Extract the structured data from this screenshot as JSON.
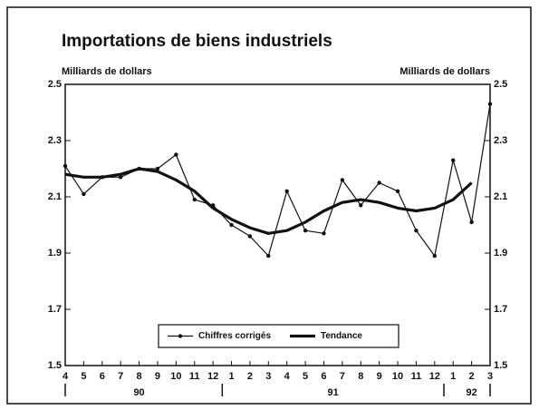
{
  "chart_data": {
    "type": "line",
    "title": "Importations de biens industriels",
    "ylabel": "Milliards de dollars",
    "y2label": "Milliards de dollars",
    "categories": [
      "4",
      "5",
      "6",
      "7",
      "8",
      "9",
      "10",
      "11",
      "12",
      "1",
      "2",
      "3",
      "4",
      "5",
      "6",
      "7",
      "8",
      "9",
      "10",
      "11",
      "12",
      "1",
      "2",
      "3"
    ],
    "year_labels": [
      "90",
      "91",
      "92"
    ],
    "series": [
      {
        "name": "Chiffres corrigés",
        "color": "#111111",
        "markers": true,
        "values": [
          2.21,
          2.11,
          2.17,
          2.17,
          2.2,
          2.2,
          2.25,
          2.09,
          2.07,
          2.0,
          1.96,
          1.89,
          2.12,
          1.98,
          1.97,
          2.16,
          2.07,
          2.15,
          2.12,
          1.98,
          1.89,
          2.23,
          2.01,
          2.43
        ]
      },
      {
        "name": "Tendance",
        "color": "#111111",
        "markers": false,
        "values": [
          2.18,
          2.17,
          2.17,
          2.18,
          2.2,
          2.19,
          2.16,
          2.12,
          2.06,
          2.02,
          1.99,
          1.97,
          1.98,
          2.01,
          2.05,
          2.08,
          2.09,
          2.08,
          2.06,
          2.05,
          2.06,
          2.09,
          2.15,
          null
        ]
      }
    ],
    "ylim": [
      1.5,
      2.5
    ],
    "yticks": [
      1.5,
      1.7,
      1.9,
      2.1,
      2.3,
      2.5
    ],
    "legend": "bottom"
  }
}
